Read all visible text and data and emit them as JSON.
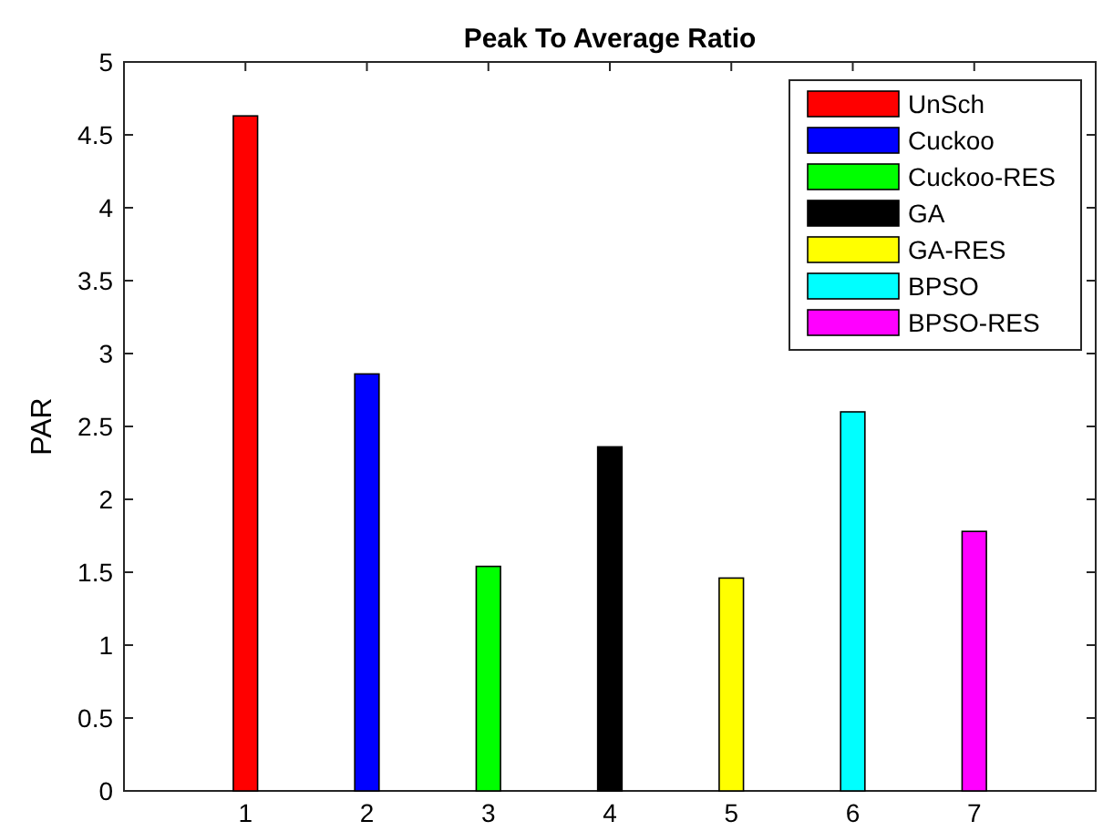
{
  "chart_data": {
    "type": "bar",
    "title": "Peak To Average Ratio",
    "ylabel": "PAR",
    "categories": [
      "1",
      "2",
      "3",
      "4",
      "5",
      "6",
      "7"
    ],
    "series": [
      {
        "name": "UnSch",
        "color": "#ff0000",
        "values": [
          4.63,
          null,
          null,
          null,
          null,
          null,
          null
        ]
      },
      {
        "name": "Cuckoo",
        "color": "#0000ff",
        "values": [
          null,
          2.86,
          null,
          null,
          null,
          null,
          null
        ]
      },
      {
        "name": "Cuckoo-RES",
        "color": "#00ff00",
        "values": [
          null,
          null,
          1.54,
          null,
          null,
          null,
          null
        ]
      },
      {
        "name": "GA",
        "color": "#000000",
        "values": [
          null,
          null,
          null,
          2.36,
          null,
          null,
          null
        ]
      },
      {
        "name": "GA-RES",
        "color": "#ffff00",
        "values": [
          null,
          null,
          null,
          null,
          1.46,
          null,
          null
        ]
      },
      {
        "name": "BPSO",
        "color": "#00ffff",
        "values": [
          null,
          null,
          null,
          null,
          null,
          2.6,
          null
        ]
      },
      {
        "name": "BPSO-RES",
        "color": "#ff00ff",
        "values": [
          null,
          null,
          null,
          null,
          null,
          null,
          1.78
        ]
      }
    ],
    "ylim": [
      0,
      5
    ],
    "yticks": [
      0,
      0.5,
      1,
      1.5,
      2,
      2.5,
      3,
      3.5,
      4,
      4.5,
      5
    ],
    "grid": false,
    "legend": "top right"
  }
}
